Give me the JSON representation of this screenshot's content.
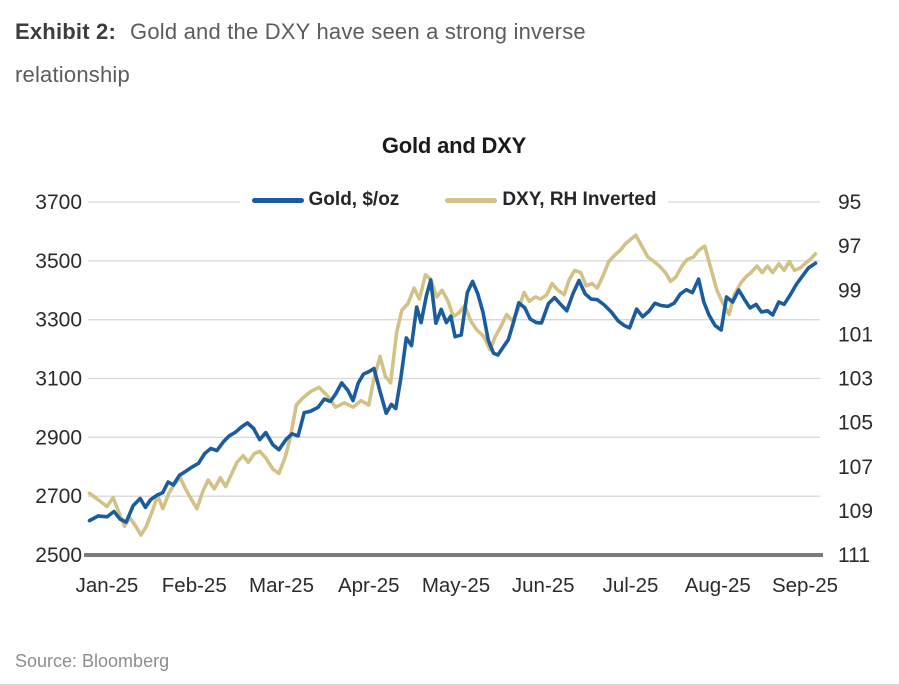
{
  "heading": {
    "exhibit_label": "Exhibit 2:",
    "line1_text": "Gold and the DXY have seen a strong inverse",
    "line2_text": "relationship"
  },
  "source": "Source: Bloomberg",
  "colors": {
    "gold_line": "#1b5c9e",
    "dxy_line": "#d3c287",
    "gridline": "#d9d9d9",
    "axis_line": "#7b7b7b",
    "tick_text": "#2b2b2b"
  },
  "chart_data": {
    "type": "line",
    "title": "Gold and DXY",
    "legend_position": "top",
    "grid": "horizontal",
    "x_ticks": [
      "Jan-25",
      "Feb-25",
      "Mar-25",
      "Apr-25",
      "May-25",
      "Jun-25",
      "Jul-25",
      "Aug-25",
      "Sep-25"
    ],
    "left_axis": {
      "label": "Gold, $/oz",
      "min": 2500,
      "max": 3700,
      "ticks": [
        3700,
        3500,
        3300,
        3100,
        2900,
        2700,
        2500
      ]
    },
    "right_axis": {
      "label": "DXY",
      "min": 95,
      "max": 111,
      "inverted": true,
      "ticks": [
        95,
        97,
        99,
        101,
        103,
        105,
        107,
        109,
        111
      ]
    },
    "series": [
      {
        "name": "Gold, $/oz",
        "color": "#1b5c9e",
        "axis": "left",
        "points": [
          [
            -0.2,
            2617
          ],
          [
            -0.1,
            2633
          ],
          [
            0.0,
            2630
          ],
          [
            0.08,
            2648
          ],
          [
            0.15,
            2622
          ],
          [
            0.22,
            2612
          ],
          [
            0.3,
            2668
          ],
          [
            0.38,
            2692
          ],
          [
            0.44,
            2662
          ],
          [
            0.5,
            2688
          ],
          [
            0.57,
            2703
          ],
          [
            0.64,
            2712
          ],
          [
            0.7,
            2748
          ],
          [
            0.76,
            2738
          ],
          [
            0.83,
            2771
          ],
          [
            0.9,
            2784
          ],
          [
            0.97,
            2798
          ],
          [
            1.05,
            2812
          ],
          [
            1.12,
            2845
          ],
          [
            1.19,
            2862
          ],
          [
            1.26,
            2855
          ],
          [
            1.33,
            2883
          ],
          [
            1.4,
            2905
          ],
          [
            1.47,
            2917
          ],
          [
            1.54,
            2935
          ],
          [
            1.61,
            2949
          ],
          [
            1.68,
            2930
          ],
          [
            1.75,
            2892
          ],
          [
            1.82,
            2916
          ],
          [
            1.9,
            2875
          ],
          [
            1.97,
            2858
          ],
          [
            2.05,
            2892
          ],
          [
            2.12,
            2912
          ],
          [
            2.19,
            2905
          ],
          [
            2.26,
            2984
          ],
          [
            2.33,
            2988
          ],
          [
            2.42,
            3002
          ],
          [
            2.49,
            3030
          ],
          [
            2.56,
            3022
          ],
          [
            2.62,
            3047
          ],
          [
            2.69,
            3085
          ],
          [
            2.76,
            3060
          ],
          [
            2.82,
            3025
          ],
          [
            2.88,
            3085
          ],
          [
            2.94,
            3115
          ],
          [
            3.0,
            3123
          ],
          [
            3.06,
            3134
          ],
          [
            3.13,
            3055
          ],
          [
            3.2,
            2982
          ],
          [
            3.26,
            3012
          ],
          [
            3.31,
            2998
          ],
          [
            3.37,
            3105
          ],
          [
            3.43,
            3238
          ],
          [
            3.49,
            3212
          ],
          [
            3.55,
            3343
          ],
          [
            3.6,
            3290
          ],
          [
            3.66,
            3380
          ],
          [
            3.71,
            3435
          ],
          [
            3.77,
            3288
          ],
          [
            3.83,
            3335
          ],
          [
            3.89,
            3290
          ],
          [
            3.94,
            3312
          ],
          [
            3.99,
            3242
          ],
          [
            4.06,
            3248
          ],
          [
            4.13,
            3392
          ],
          [
            4.19,
            3430
          ],
          [
            4.25,
            3388
          ],
          [
            4.31,
            3325
          ],
          [
            4.37,
            3230
          ],
          [
            4.43,
            3186
          ],
          [
            4.48,
            3180
          ],
          [
            4.54,
            3206
          ],
          [
            4.6,
            3232
          ],
          [
            4.66,
            3292
          ],
          [
            4.72,
            3357
          ],
          [
            4.79,
            3340
          ],
          [
            4.85,
            3302
          ],
          [
            4.92,
            3290
          ],
          [
            4.98,
            3289
          ],
          [
            5.06,
            3355
          ],
          [
            5.13,
            3375
          ],
          [
            5.2,
            3352
          ],
          [
            5.27,
            3330
          ],
          [
            5.34,
            3388
          ],
          [
            5.41,
            3433
          ],
          [
            5.48,
            3388
          ],
          [
            5.55,
            3370
          ],
          [
            5.62,
            3368
          ],
          [
            5.7,
            3350
          ],
          [
            5.78,
            3326
          ],
          [
            5.86,
            3295
          ],
          [
            5.93,
            3280
          ],
          [
            5.99,
            3272
          ],
          [
            6.07,
            3336
          ],
          [
            6.14,
            3310
          ],
          [
            6.21,
            3328
          ],
          [
            6.28,
            3356
          ],
          [
            6.35,
            3348
          ],
          [
            6.43,
            3345
          ],
          [
            6.5,
            3356
          ],
          [
            6.57,
            3387
          ],
          [
            6.64,
            3402
          ],
          [
            6.71,
            3392
          ],
          [
            6.78,
            3438
          ],
          [
            6.84,
            3360
          ],
          [
            6.9,
            3316
          ],
          [
            6.97,
            3280
          ],
          [
            7.04,
            3265
          ],
          [
            7.1,
            3377
          ],
          [
            7.17,
            3360
          ],
          [
            7.24,
            3401
          ],
          [
            7.31,
            3367
          ],
          [
            7.37,
            3340
          ],
          [
            7.44,
            3352
          ],
          [
            7.5,
            3326
          ],
          [
            7.57,
            3330
          ],
          [
            7.63,
            3316
          ],
          [
            7.7,
            3360
          ],
          [
            7.76,
            3352
          ],
          [
            7.83,
            3384
          ],
          [
            7.9,
            3420
          ],
          [
            7.97,
            3448
          ],
          [
            8.04,
            3476
          ],
          [
            8.12,
            3492
          ]
        ]
      },
      {
        "name": "DXY, RH Inverted",
        "color": "#d3c287",
        "axis": "right_inverted",
        "points": [
          [
            -0.2,
            108.2
          ],
          [
            -0.1,
            108.5
          ],
          [
            0.0,
            108.8
          ],
          [
            0.07,
            108.4
          ],
          [
            0.13,
            109.0
          ],
          [
            0.2,
            109.7
          ],
          [
            0.26,
            109.3
          ],
          [
            0.33,
            109.7
          ],
          [
            0.39,
            110.1
          ],
          [
            0.45,
            109.7
          ],
          [
            0.52,
            109.0
          ],
          [
            0.58,
            108.3
          ],
          [
            0.64,
            108.9
          ],
          [
            0.71,
            108.2
          ],
          [
            0.77,
            107.8
          ],
          [
            0.84,
            107.5
          ],
          [
            0.9,
            108.0
          ],
          [
            0.97,
            108.5
          ],
          [
            1.03,
            108.9
          ],
          [
            1.1,
            108.1
          ],
          [
            1.16,
            107.6
          ],
          [
            1.23,
            108.0
          ],
          [
            1.3,
            107.5
          ],
          [
            1.36,
            107.9
          ],
          [
            1.43,
            107.3
          ],
          [
            1.49,
            106.8
          ],
          [
            1.56,
            106.5
          ],
          [
            1.62,
            106.8
          ],
          [
            1.69,
            106.4
          ],
          [
            1.75,
            106.3
          ],
          [
            1.82,
            106.6
          ],
          [
            1.9,
            107.1
          ],
          [
            1.97,
            107.3
          ],
          [
            2.04,
            106.6
          ],
          [
            2.1,
            105.7
          ],
          [
            2.17,
            104.2
          ],
          [
            2.24,
            103.9
          ],
          [
            2.33,
            103.6
          ],
          [
            2.43,
            103.4
          ],
          [
            2.53,
            103.8
          ],
          [
            2.62,
            104.3
          ],
          [
            2.72,
            104.1
          ],
          [
            2.82,
            104.3
          ],
          [
            2.91,
            104.0
          ],
          [
            3.0,
            104.2
          ],
          [
            3.06,
            103.0
          ],
          [
            3.13,
            102.0
          ],
          [
            3.19,
            102.9
          ],
          [
            3.25,
            103.2
          ],
          [
            3.32,
            100.9
          ],
          [
            3.38,
            99.9
          ],
          [
            3.45,
            99.6
          ],
          [
            3.52,
            98.9
          ],
          [
            3.58,
            99.4
          ],
          [
            3.65,
            98.3
          ],
          [
            3.71,
            98.5
          ],
          [
            3.78,
            99.3
          ],
          [
            3.84,
            99.0
          ],
          [
            3.91,
            99.5
          ],
          [
            3.97,
            100.2
          ],
          [
            4.04,
            100.0
          ],
          [
            4.1,
            99.7
          ],
          [
            4.17,
            100.4
          ],
          [
            4.24,
            100.8
          ],
          [
            4.32,
            101.1
          ],
          [
            4.39,
            101.7
          ],
          [
            4.45,
            101.1
          ],
          [
            4.52,
            100.6
          ],
          [
            4.58,
            100.1
          ],
          [
            4.65,
            100.4
          ],
          [
            4.71,
            99.9
          ],
          [
            4.78,
            99.1
          ],
          [
            4.84,
            99.5
          ],
          [
            4.91,
            99.3
          ],
          [
            4.97,
            99.4
          ],
          [
            5.04,
            99.2
          ],
          [
            5.1,
            98.7
          ],
          [
            5.17,
            99.0
          ],
          [
            5.24,
            99.2
          ],
          [
            5.3,
            98.5
          ],
          [
            5.36,
            98.1
          ],
          [
            5.43,
            98.2
          ],
          [
            5.49,
            98.8
          ],
          [
            5.56,
            98.7
          ],
          [
            5.62,
            98.9
          ],
          [
            5.69,
            98.3
          ],
          [
            5.75,
            97.7
          ],
          [
            5.82,
            97.4
          ],
          [
            5.88,
            97.2
          ],
          [
            5.94,
            96.9
          ],
          [
            6.0,
            96.7
          ],
          [
            6.06,
            96.5
          ],
          [
            6.13,
            97.0
          ],
          [
            6.2,
            97.5
          ],
          [
            6.27,
            97.7
          ],
          [
            6.33,
            97.9
          ],
          [
            6.4,
            98.2
          ],
          [
            6.46,
            98.6
          ],
          [
            6.52,
            98.4
          ],
          [
            6.59,
            97.9
          ],
          [
            6.65,
            97.6
          ],
          [
            6.72,
            97.5
          ],
          [
            6.78,
            97.2
          ],
          [
            6.85,
            97.0
          ],
          [
            6.92,
            98.0
          ],
          [
            6.99,
            99.0
          ],
          [
            7.06,
            99.6
          ],
          [
            7.13,
            100.1
          ],
          [
            7.19,
            99.2
          ],
          [
            7.26,
            98.7
          ],
          [
            7.32,
            98.4
          ],
          [
            7.38,
            98.2
          ],
          [
            7.45,
            97.9
          ],
          [
            7.51,
            98.2
          ],
          [
            7.57,
            97.9
          ],
          [
            7.63,
            98.2
          ],
          [
            7.7,
            97.8
          ],
          [
            7.76,
            98.1
          ],
          [
            7.82,
            97.7
          ],
          [
            7.88,
            98.1
          ],
          [
            7.94,
            98.0
          ],
          [
            8.0,
            97.8
          ],
          [
            8.06,
            97.6
          ],
          [
            8.12,
            97.35
          ]
        ]
      }
    ]
  }
}
